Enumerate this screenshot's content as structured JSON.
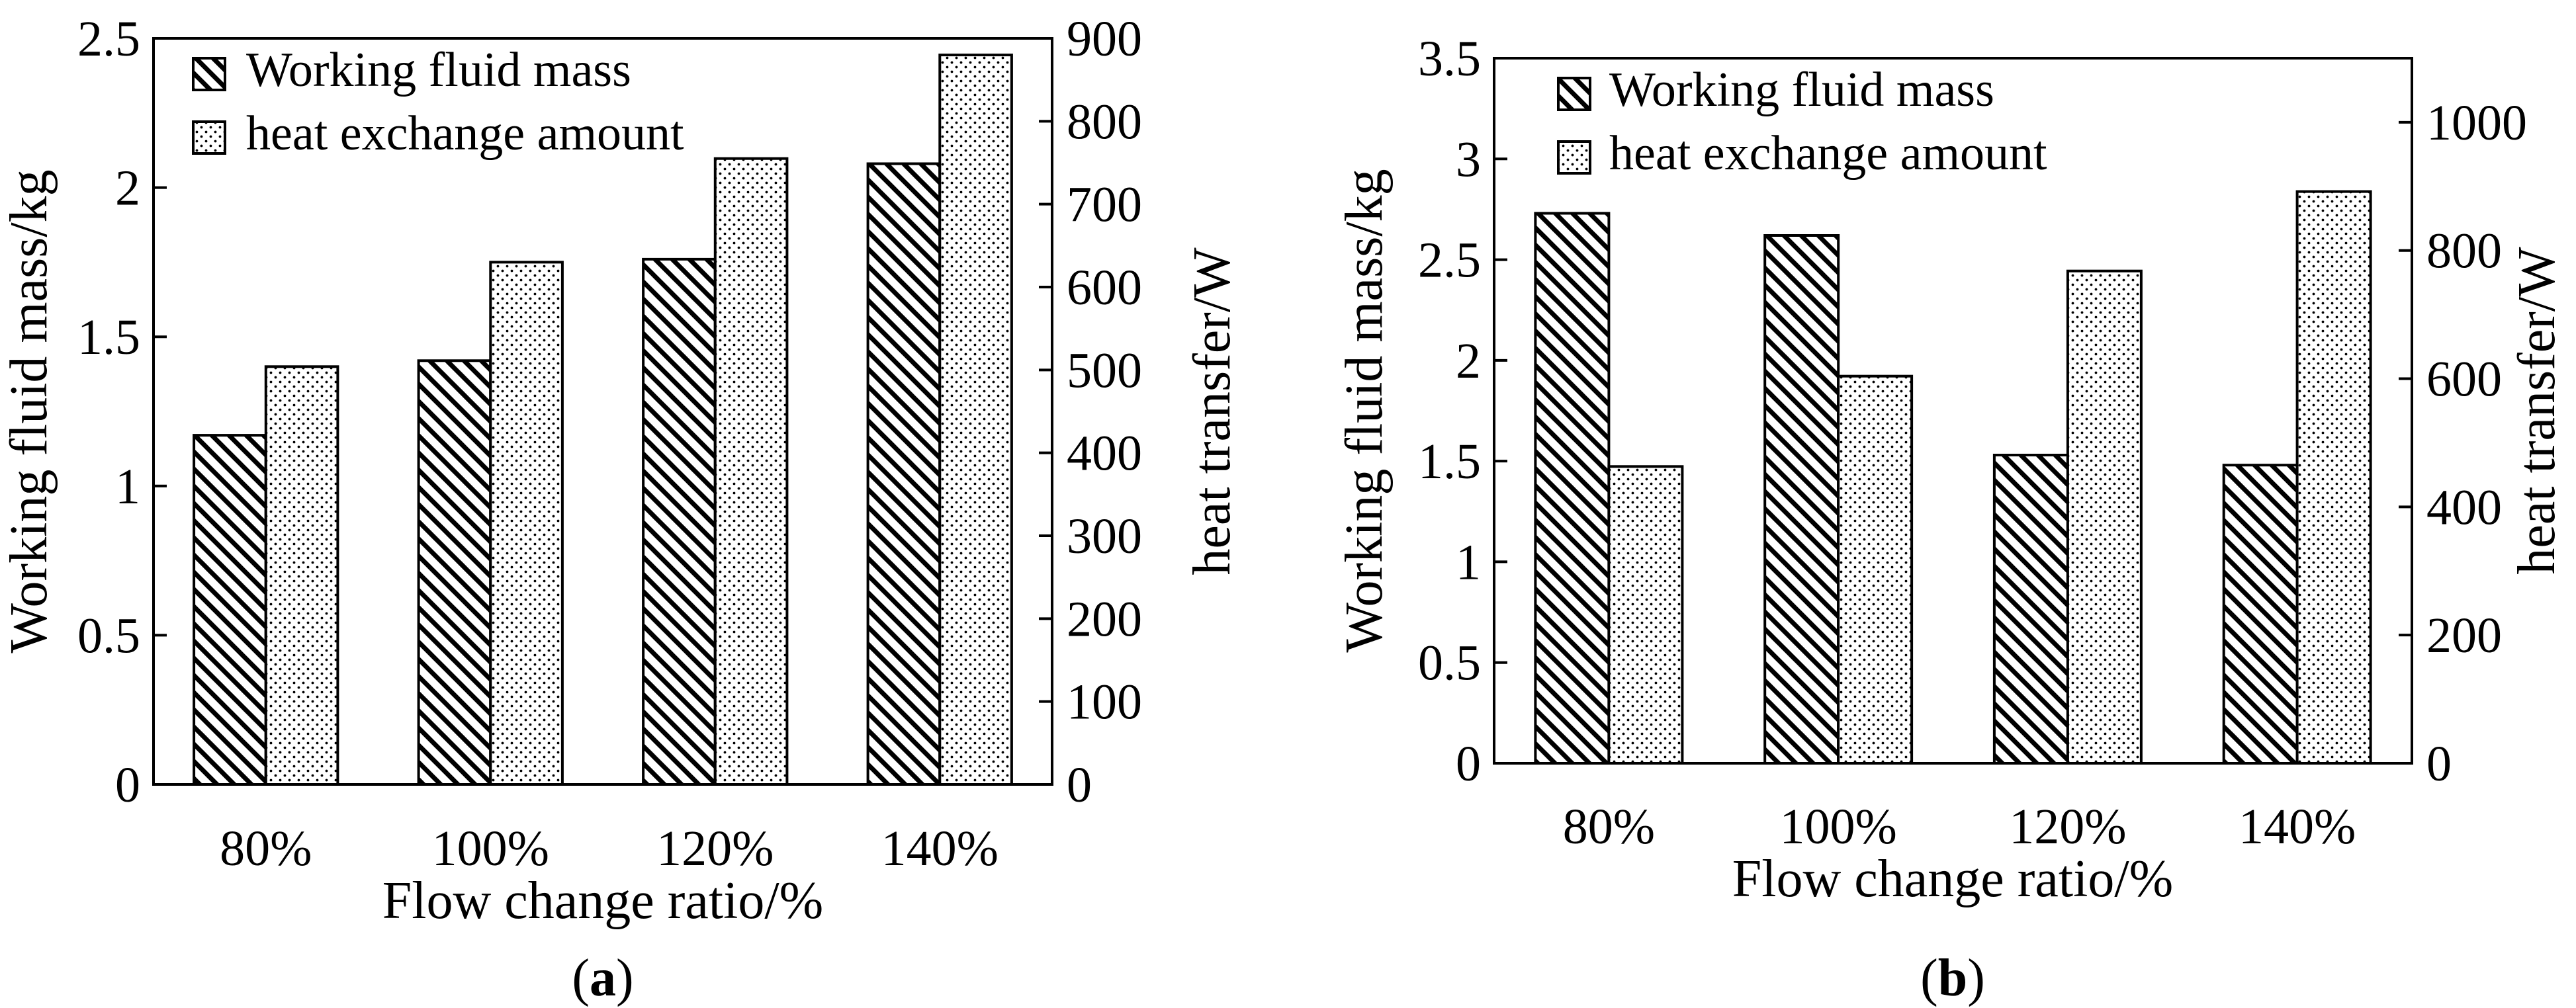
{
  "chart_data": [
    {
      "type": "bar",
      "panel_label": "a",
      "categories": [
        "80%",
        "100%",
        "120%",
        "140%"
      ],
      "xlabel": "Flow change ratio/%",
      "ylabel": "Working fluid mass/kg",
      "y2label": "heat transfer/W",
      "ylim": [
        0,
        2.5
      ],
      "yticks": [
        "0",
        "0.5",
        "1",
        "1.5",
        "2",
        "2.5"
      ],
      "y2lim": [
        0,
        900
      ],
      "y2ticks": [
        "0",
        "100",
        "200",
        "300",
        "400",
        "500",
        "600",
        "700",
        "800",
        "900"
      ],
      "legend_position": "top-left",
      "series": [
        {
          "name": "Working fluid mass",
          "axis": "left",
          "pattern": "hatch",
          "values": [
            1.17,
            1.42,
            1.76,
            2.08
          ]
        },
        {
          "name": "heat exchange amount",
          "axis": "right",
          "pattern": "dots",
          "values": [
            504,
            630,
            755,
            880
          ]
        }
      ]
    },
    {
      "type": "bar",
      "panel_label": "b",
      "categories": [
        "80%",
        "100%",
        "120%",
        "140%"
      ],
      "xlabel": "Flow change ratio/%",
      "ylabel": "Working fluid mass/kg",
      "y2label": "heat transfer/W",
      "ylim": [
        0,
        3.5
      ],
      "yticks": [
        "0",
        "0.5",
        "1",
        "1.5",
        "2",
        "2.5",
        "3",
        "3.5"
      ],
      "y2lim": [
        0,
        1100
      ],
      "y2ticks": [
        "0",
        "200",
        "400",
        "600",
        "800",
        "1000"
      ],
      "legend_position": "top-left",
      "series": [
        {
          "name": "Working fluid mass",
          "axis": "left",
          "pattern": "hatch",
          "values": [
            2.73,
            2.62,
            1.53,
            1.48
          ]
        },
        {
          "name": "heat exchange amount",
          "axis": "right",
          "pattern": "dots",
          "values": [
            463,
            604,
            768,
            892
          ]
        }
      ]
    }
  ]
}
